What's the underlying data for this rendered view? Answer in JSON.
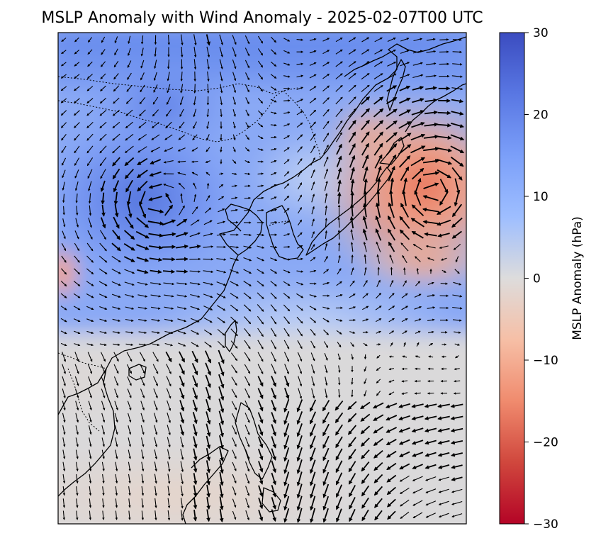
{
  "title": "MSLP Anomaly with Wind Anomaly - 2025-02-07T00 UTC",
  "colorbar": {
    "label": "MSLP Anomaly (hPa)",
    "ticks": [
      "30",
      "20",
      "10",
      "0",
      "−10",
      "−20",
      "−30"
    ],
    "min": -30,
    "max": 30,
    "colormap": "coolwarm",
    "colors": [
      "#3b4cc0",
      "#6788ee",
      "#9abbff",
      "#c9d7f0",
      "#dddcdc",
      "#f2cbb7",
      "#f7a889",
      "#e26952",
      "#b40426"
    ]
  },
  "map": {
    "field": "MSLP anomaly",
    "vectors": "wind anomaly",
    "features": [
      "coastlines",
      "country borders"
    ]
  }
}
